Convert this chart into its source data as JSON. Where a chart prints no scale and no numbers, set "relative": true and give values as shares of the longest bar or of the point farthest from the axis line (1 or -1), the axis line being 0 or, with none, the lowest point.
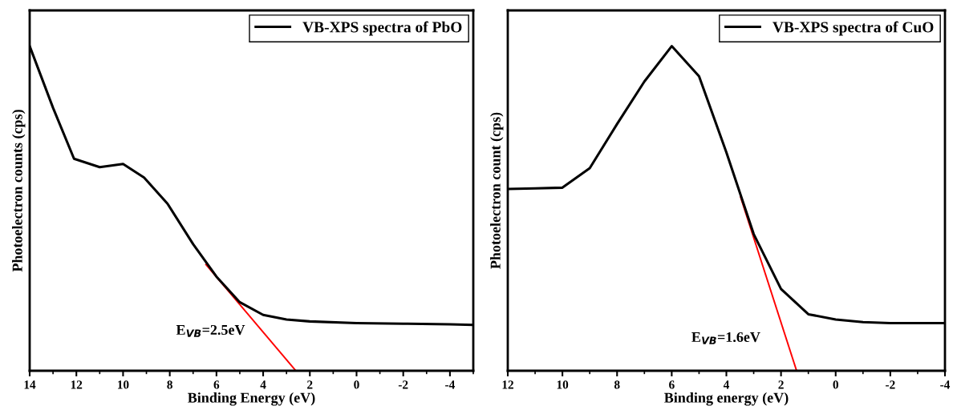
{
  "chart_data": [
    {
      "type": "line",
      "relative": true,
      "xlabel": "Binding Energy (eV)",
      "ylabel": "Photoelectron counts (cps)",
      "xlim": [
        14,
        -5
      ],
      "xticks": [
        14,
        12,
        10,
        8,
        6,
        4,
        2,
        0,
        -2,
        -4
      ],
      "legend": "top right",
      "grid": false,
      "tick_labels": "x",
      "annotations": [
        "E$_{VB}$=2.5eV"
      ],
      "series": [
        {
          "name": "VB-XPS spectra of PbO",
          "color": "#000000",
          "x": [
            14,
            13,
            12.1,
            11,
            10,
            9.1,
            8.1,
            7,
            6,
            5,
            4,
            3,
            2,
            0,
            -2,
            -4,
            -5
          ],
          "values": [
            1.0,
            0.81,
            0.653,
            0.627,
            0.637,
            0.595,
            0.515,
            0.39,
            0.29,
            0.211,
            0.172,
            0.158,
            0.152,
            0.147,
            0.145,
            0.143,
            0.141
          ]
        },
        {
          "type": "line",
          "color": "#ff0000",
          "x": [
            6.45,
            2.6
          ],
          "values": [
            0.327,
            0
          ]
        }
      ]
    },
    {
      "type": "line",
      "relative": true,
      "xlabel": "Binding energy (eV)",
      "ylabel": "Photoelectron count (cps)",
      "xlim": [
        12,
        -4
      ],
      "xticks": [
        12,
        10,
        8,
        6,
        4,
        2,
        0,
        -2,
        -4
      ],
      "legend": "top right",
      "grid": false,
      "tick_labels": "x",
      "annotations": [
        "E$_{VB}$=1.6eV"
      ],
      "series": [
        {
          "name": "VB-XPS spectra of CuO",
          "color": "#000000",
          "x": [
            12,
            11,
            10,
            9,
            8,
            7,
            6,
            5,
            4,
            3,
            2,
            1,
            0,
            -1,
            -2,
            -4
          ],
          "values": [
            0.56,
            0.562,
            0.564,
            0.624,
            0.76,
            0.891,
            1.0,
            0.907,
            0.673,
            0.421,
            0.252,
            0.174,
            0.158,
            0.15,
            0.147,
            0.147
          ]
        },
        {
          "type": "line",
          "color": "#ff0000",
          "x": [
            3.48,
            1.43
          ],
          "values": [
            0.535,
            0
          ]
        }
      ]
    }
  ]
}
